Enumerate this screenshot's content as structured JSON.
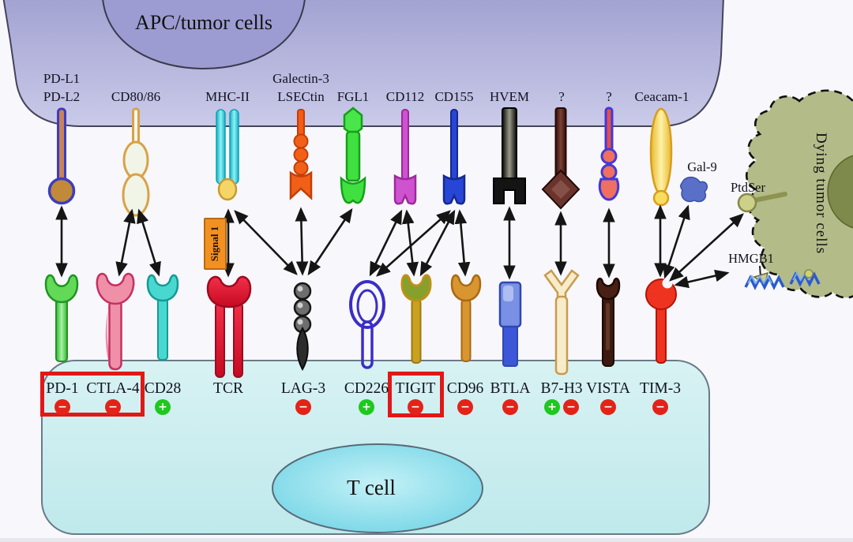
{
  "apc": {
    "label": "APC/tumor cells"
  },
  "t_cell": {
    "label": "T cell"
  },
  "dying_cell": {
    "label": "Dying tumor cells"
  },
  "signal_box": {
    "label": "Signal 1"
  },
  "ligands": [
    {
      "id": "pd-l1",
      "lines": [
        "PD-L1",
        "PD-L2"
      ]
    },
    {
      "id": "cd80-86",
      "lines": [
        "CD80/86"
      ]
    },
    {
      "id": "mhc-ii",
      "lines": [
        "MHC-II"
      ]
    },
    {
      "id": "galectin-3",
      "lines": [
        "Galectin-3",
        "LSECtin"
      ]
    },
    {
      "id": "fgl1",
      "lines": [
        "FGL1"
      ]
    },
    {
      "id": "cd112",
      "lines": [
        "CD112"
      ]
    },
    {
      "id": "cd155",
      "lines": [
        "CD155"
      ]
    },
    {
      "id": "hvem",
      "lines": [
        "HVEM"
      ]
    },
    {
      "id": "unknown-1",
      "lines": [
        "?"
      ]
    },
    {
      "id": "unknown-2",
      "lines": [
        "?"
      ]
    },
    {
      "id": "ceacam-1",
      "lines": [
        "Ceacam-1"
      ]
    }
  ],
  "soluble_factors": [
    {
      "id": "gal-9",
      "label": "Gal-9"
    },
    {
      "id": "ptdser",
      "label": "PtdSer"
    },
    {
      "id": "hmgb1",
      "label": "HMGB1"
    }
  ],
  "receptors": [
    {
      "id": "pd-1",
      "label": "PD-1",
      "sign": "inhibitory"
    },
    {
      "id": "ctla-4",
      "label": "CTLA-4",
      "sign": "inhibitory"
    },
    {
      "id": "cd28",
      "label": "CD28",
      "sign": "stimulatory"
    },
    {
      "id": "tcr",
      "label": "TCR",
      "sign": null
    },
    {
      "id": "lag-3",
      "label": "LAG-3",
      "sign": "inhibitory"
    },
    {
      "id": "cd226",
      "label": "CD226",
      "sign": "stimulatory"
    },
    {
      "id": "tigit",
      "label": "TIGIT",
      "sign": "inhibitory"
    },
    {
      "id": "cd96",
      "label": "CD96",
      "sign": "inhibitory"
    },
    {
      "id": "btla",
      "label": "BTLA",
      "sign": "inhibitory"
    },
    {
      "id": "b7-h3",
      "label": "B7-H3",
      "sign": "both"
    },
    {
      "id": "vista",
      "label": "VISTA",
      "sign": "inhibitory"
    },
    {
      "id": "tim-3",
      "label": "TIM-3",
      "sign": "inhibitory"
    }
  ],
  "signs": {
    "inhibitory": "−",
    "stimulatory": "+"
  },
  "interactions": [
    {
      "from": "pd-l1",
      "to": "pd-1"
    },
    {
      "from": "cd80-86",
      "to": "ctla-4"
    },
    {
      "from": "cd80-86",
      "to": "cd28"
    },
    {
      "from": "mhc-ii",
      "to": "tcr"
    },
    {
      "from": "mhc-ii",
      "to": "lag-3"
    },
    {
      "from": "galectin-3",
      "to": "lag-3"
    },
    {
      "from": "fgl1",
      "to": "lag-3"
    },
    {
      "from": "cd112",
      "to": "cd226"
    },
    {
      "from": "cd112",
      "to": "tigit"
    },
    {
      "from": "cd155",
      "to": "cd226"
    },
    {
      "from": "cd155",
      "to": "tigit"
    },
    {
      "from": "cd155",
      "to": "cd96"
    },
    {
      "from": "hvem",
      "to": "btla"
    },
    {
      "from": "unknown-1",
      "to": "b7-h3"
    },
    {
      "from": "unknown-2",
      "to": "vista"
    },
    {
      "from": "ceacam-1",
      "to": "tim-3"
    },
    {
      "from": "gal-9",
      "to": "tim-3"
    },
    {
      "from": "ptdser",
      "to": "tim-3"
    },
    {
      "from": "hmgb1",
      "to": "tim-3"
    }
  ],
  "highlights": [
    {
      "receptors": [
        "PD-1",
        "CTLA-4"
      ]
    },
    {
      "receptors": [
        "TIGIT"
      ]
    }
  ],
  "colors": {
    "inhibitory": "#e32318",
    "stimulatory": "#1ec81e",
    "highlight_box": "#e01818",
    "arrow": "#151515",
    "apc_fill": "#b0b0da",
    "t_cell_fill": "#c8ecef",
    "dying_cell_fill": "#b3bb89"
  }
}
